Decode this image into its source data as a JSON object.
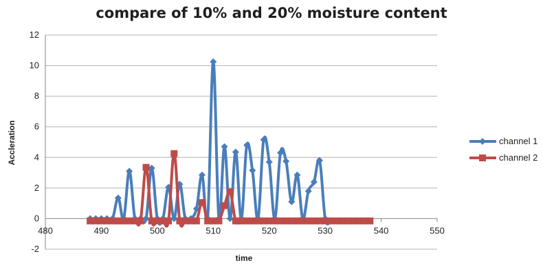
{
  "chart_data": {
    "type": "line",
    "title": "compare of 10% and 20% moisture content",
    "xlabel": "time",
    "ylabel": "Accleration",
    "xlim": [
      480,
      550
    ],
    "ylim": [
      -2,
      12
    ],
    "x_ticks": [
      480,
      490,
      500,
      510,
      520,
      530,
      540,
      550
    ],
    "y_ticks": [
      -2,
      0,
      2,
      4,
      6,
      8,
      10,
      12
    ],
    "grid": "horizontal",
    "legend_position": "right",
    "series": [
      {
        "name": "channel 1",
        "color": "#4a7ebb",
        "marker": "diamond",
        "points": [
          [
            488,
            0
          ],
          [
            489,
            0
          ],
          [
            490,
            0
          ],
          [
            491,
            0
          ],
          [
            492,
            0
          ],
          [
            493,
            1.35
          ],
          [
            494,
            0
          ],
          [
            495,
            3.1
          ],
          [
            496,
            0
          ],
          [
            497,
            0
          ],
          [
            498,
            0
          ],
          [
            499,
            3.3
          ],
          [
            500,
            0
          ],
          [
            501,
            0
          ],
          [
            502,
            2.05
          ],
          [
            503,
            0
          ],
          [
            504,
            2.25
          ],
          [
            505,
            0
          ],
          [
            506,
            0
          ],
          [
            507,
            0.65
          ],
          [
            508,
            2.85
          ],
          [
            509,
            0
          ],
          [
            510,
            10.25
          ],
          [
            511,
            0
          ],
          [
            512,
            4.7
          ],
          [
            513,
            0
          ],
          [
            514,
            4.35
          ],
          [
            515,
            0
          ],
          [
            516,
            4.8
          ],
          [
            517,
            3.15
          ],
          [
            518,
            0
          ],
          [
            519,
            5.15
          ],
          [
            520,
            3.7
          ],
          [
            521,
            0
          ],
          [
            522,
            4.3
          ],
          [
            523,
            3.75
          ],
          [
            524,
            1.1
          ],
          [
            525,
            2.85
          ],
          [
            526,
            0
          ],
          [
            527,
            1.8
          ],
          [
            528,
            2.4
          ],
          [
            529,
            3.8
          ],
          [
            530,
            0
          ],
          [
            531,
            -0.15
          ]
        ]
      },
      {
        "name": "channel 2",
        "color": "#be4b48",
        "marker": "square",
        "points": [
          [
            488,
            -0.15
          ],
          [
            489,
            -0.15
          ],
          [
            490,
            -0.15
          ],
          [
            491,
            -0.15
          ],
          [
            492,
            -0.15
          ],
          [
            493,
            -0.15
          ],
          [
            494,
            -0.15
          ],
          [
            495,
            -0.15
          ],
          [
            496,
            -0.15
          ],
          [
            497,
            -0.15
          ],
          [
            498,
            3.35
          ],
          [
            499,
            -0.15
          ],
          [
            500,
            -0.15
          ],
          [
            501,
            -0.15
          ],
          [
            502,
            -0.15
          ],
          [
            503,
            4.25
          ],
          [
            504,
            -0.15
          ],
          [
            505,
            -0.15
          ],
          [
            506,
            -0.15
          ],
          [
            507,
            -0.15
          ],
          [
            508,
            1.05
          ],
          [
            509,
            -0.15
          ],
          [
            510,
            -0.15
          ],
          [
            511,
            -0.15
          ],
          [
            512,
            0.85
          ],
          [
            513,
            1.75
          ],
          [
            514,
            -0.15
          ],
          [
            515,
            -0.15
          ],
          [
            516,
            -0.15
          ],
          [
            517,
            -0.15
          ],
          [
            518,
            -0.15
          ],
          [
            519,
            -0.15
          ],
          [
            520,
            -0.15
          ],
          [
            521,
            -0.15
          ],
          [
            522,
            -0.15
          ],
          [
            523,
            -0.15
          ],
          [
            524,
            -0.15
          ],
          [
            525,
            -0.15
          ],
          [
            526,
            -0.15
          ],
          [
            527,
            -0.15
          ],
          [
            528,
            -0.15
          ],
          [
            529,
            -0.15
          ],
          [
            530,
            -0.15
          ],
          [
            531,
            -0.15
          ],
          [
            532,
            -0.15
          ],
          [
            533,
            -0.15
          ],
          [
            534,
            -0.15
          ],
          [
            535,
            -0.15
          ],
          [
            536,
            -0.15
          ],
          [
            537,
            -0.15
          ],
          [
            538,
            -0.15
          ]
        ]
      }
    ]
  }
}
